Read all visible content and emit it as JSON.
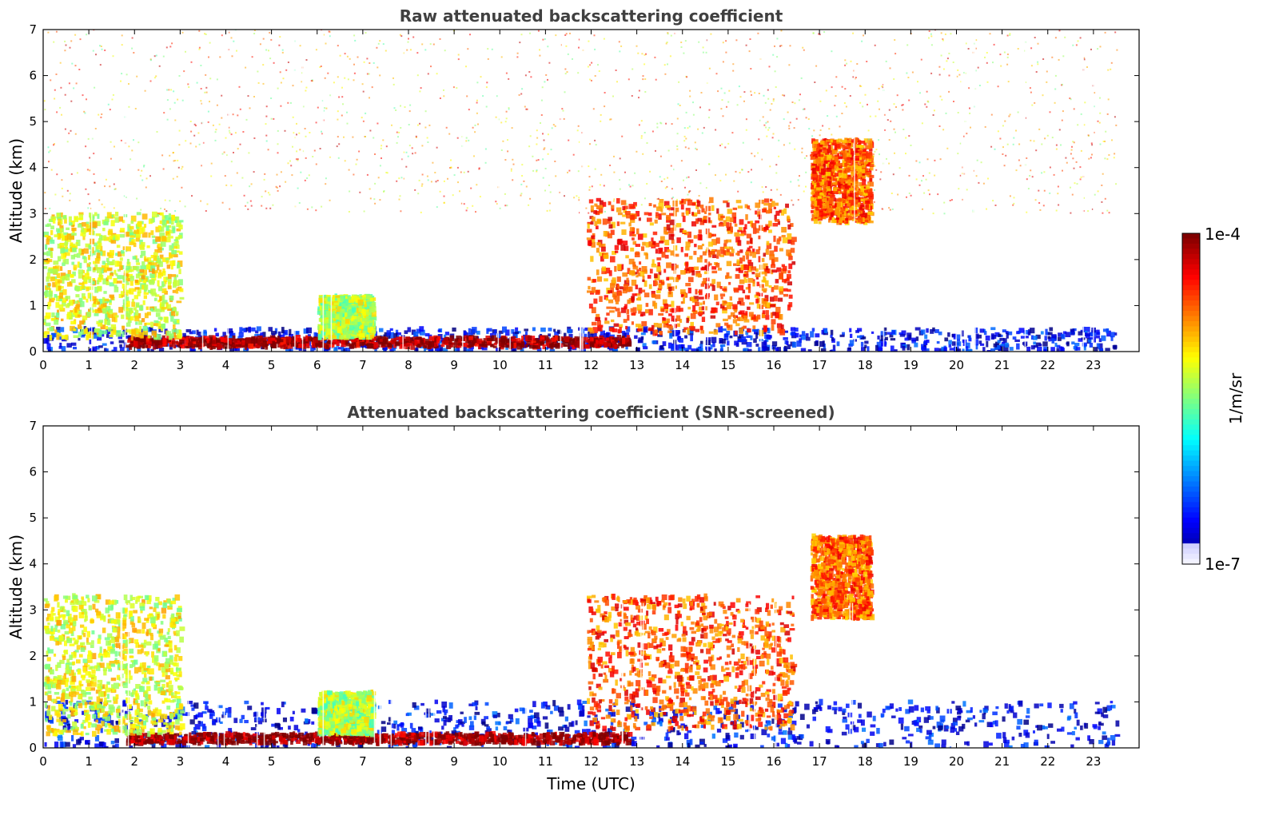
{
  "chart_data": [
    {
      "type": "heatmap",
      "title": "Raw attenuated backscattering coefficient",
      "xlabel": "",
      "ylabel": "Altitude (km)",
      "xlim": [
        0,
        24
      ],
      "ylim": [
        0,
        7
      ],
      "x_ticks": [
        "0",
        "1",
        "2",
        "3",
        "4",
        "5",
        "6",
        "7",
        "8",
        "9",
        "10",
        "11",
        "12",
        "13",
        "14",
        "15",
        "16",
        "17",
        "18",
        "19",
        "20",
        "21",
        "22",
        "23"
      ],
      "y_ticks": [
        "0",
        "1",
        "2",
        "3",
        "4",
        "5",
        "6",
        "7"
      ],
      "screened": false,
      "features": [
        {
          "name": "boundary layer (low, blue)",
          "t": [
            0,
            23.5
          ],
          "alt": [
            0,
            0.5
          ],
          "level": 0.12
        },
        {
          "name": "aerosol layer top (dark red band)",
          "t": [
            1.8,
            12.8
          ],
          "alt": [
            0.1,
            0.3
          ],
          "level": 0.97
        },
        {
          "name": "early layer (green-yellow)",
          "t": [
            0,
            3.0
          ],
          "alt": [
            0.3,
            3.0
          ],
          "level": 0.6
        },
        {
          "name": "layer at 6-7 UTC",
          "t": [
            6.0,
            7.2
          ],
          "alt": [
            0.3,
            1.2
          ],
          "level": 0.55
        },
        {
          "name": "clouds (orange/red)",
          "t": [
            11.9,
            16.4
          ],
          "alt": [
            0.4,
            3.3
          ],
          "level": 0.8
        },
        {
          "name": "upper cloud",
          "t": [
            16.8,
            18.1
          ],
          "alt": [
            2.8,
            4.6
          ],
          "level": 0.78
        },
        {
          "name": "noise high altitude (orange)",
          "t": [
            0,
            23.5
          ],
          "alt": [
            3.0,
            7.0
          ],
          "level": 0.7
        }
      ]
    },
    {
      "type": "heatmap",
      "title": "Attenuated backscattering coefficient (SNR-screened)",
      "xlabel": "Time (UTC)",
      "ylabel": "Altitude (km)",
      "xlim": [
        0,
        24
      ],
      "ylim": [
        0,
        7
      ],
      "x_ticks": [
        "0",
        "1",
        "2",
        "3",
        "4",
        "5",
        "6",
        "7",
        "8",
        "9",
        "10",
        "11",
        "12",
        "13",
        "14",
        "15",
        "16",
        "17",
        "18",
        "19",
        "20",
        "21",
        "22",
        "23"
      ],
      "y_ticks": [
        "0",
        "1",
        "2",
        "3",
        "4",
        "5",
        "6",
        "7"
      ],
      "screened": true,
      "features": [
        {
          "name": "boundary layer (blue)",
          "t": [
            0,
            23.5
          ],
          "alt": [
            0,
            1.0
          ],
          "level": 0.12
        },
        {
          "name": "aerosol layer top (dark band)",
          "t": [
            1.8,
            12.8
          ],
          "alt": [
            0.1,
            0.3
          ],
          "level": 0.99
        },
        {
          "name": "early layer",
          "t": [
            0,
            3.0
          ],
          "alt": [
            0.3,
            3.3
          ],
          "level": 0.6
        },
        {
          "name": "layer at 6-7 UTC",
          "t": [
            6.0,
            7.2
          ],
          "alt": [
            0.3,
            1.2
          ],
          "level": 0.55
        },
        {
          "name": "clouds",
          "t": [
            11.9,
            16.4
          ],
          "alt": [
            0.4,
            3.3
          ],
          "level": 0.8
        },
        {
          "name": "upper cloud",
          "t": [
            16.8,
            18.1
          ],
          "alt": [
            2.8,
            4.6
          ],
          "level": 0.78
        }
      ]
    }
  ],
  "colorbar": {
    "label": "1/m/sr",
    "max_label": "1e-4",
    "min_label": "1e-7",
    "colormap": "jet",
    "scale": "log",
    "range": [
      1e-07,
      0.0001
    ]
  }
}
